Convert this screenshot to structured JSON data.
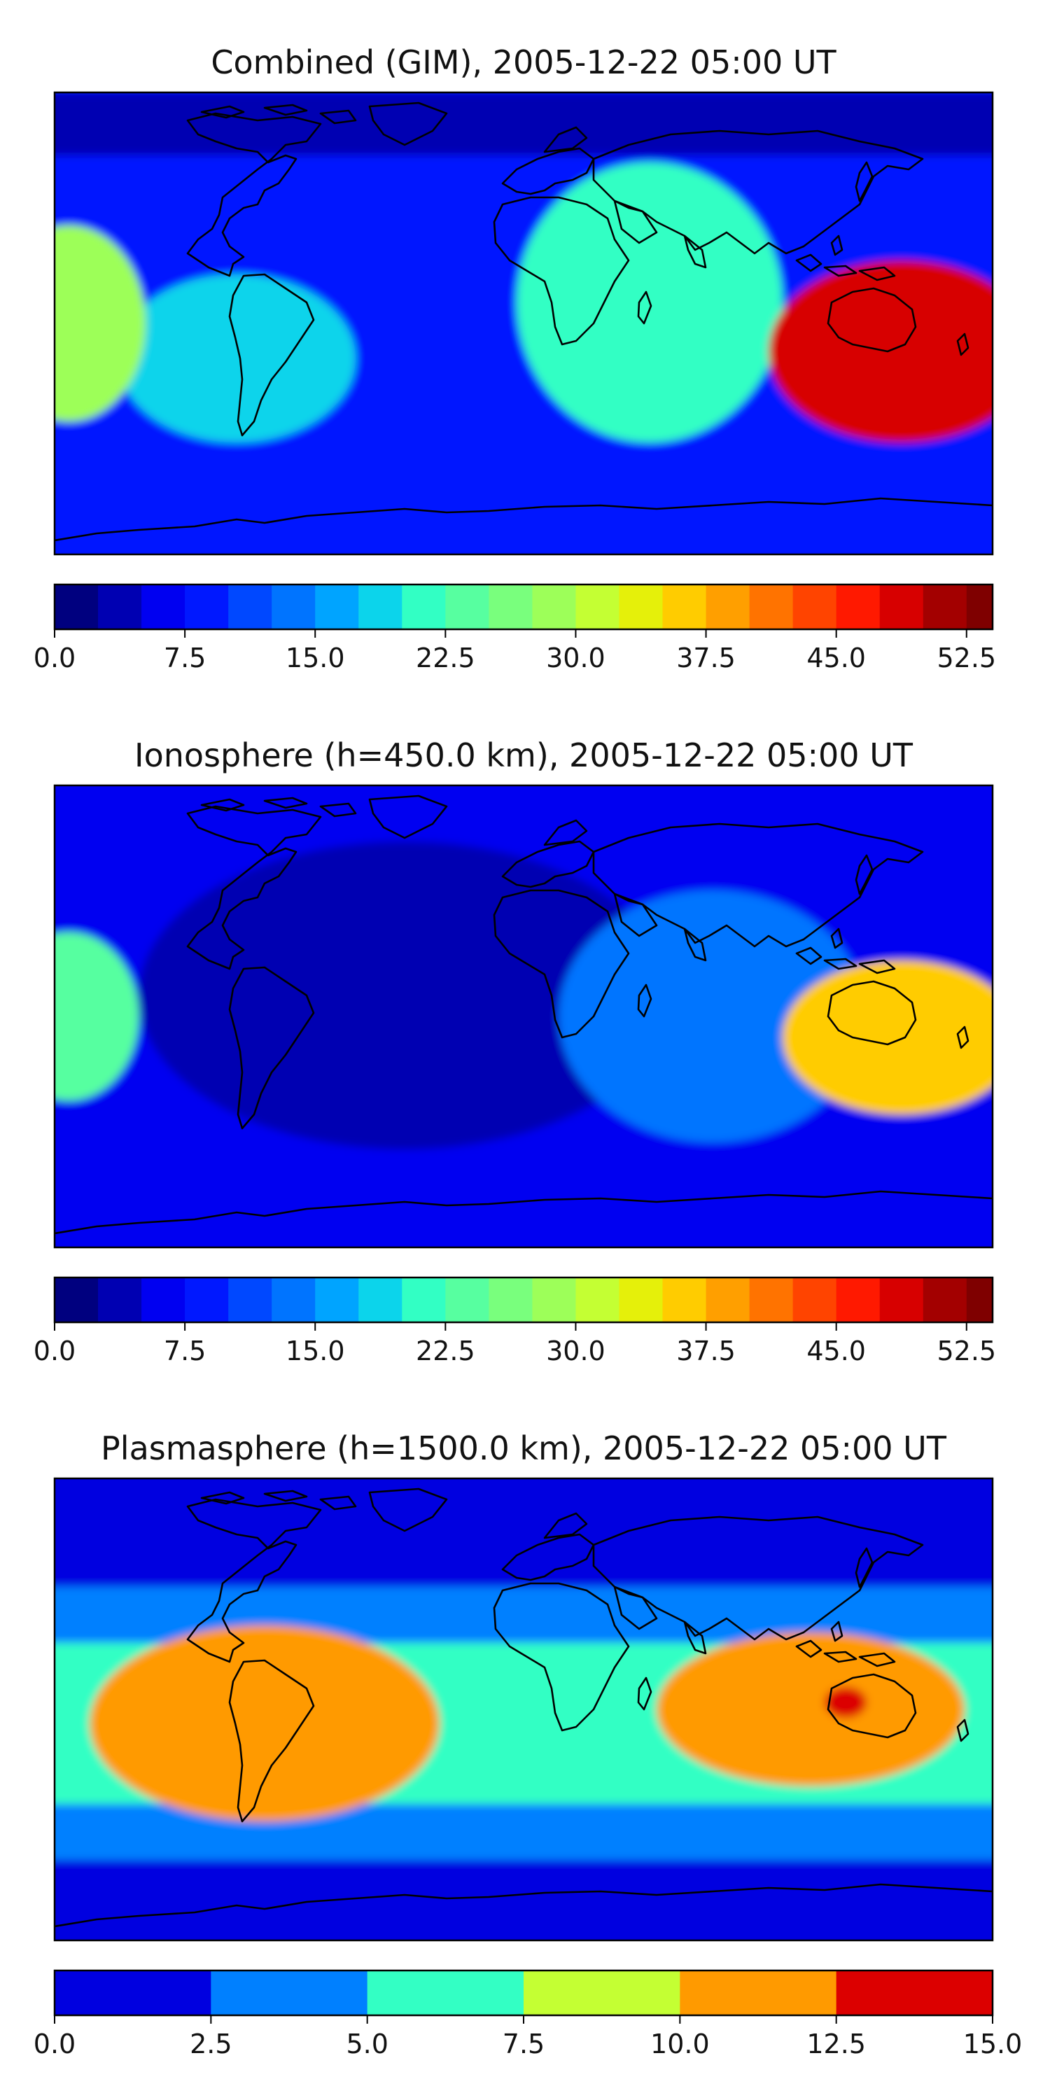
{
  "chart_data": [
    {
      "type": "heatmap",
      "title": "Combined (GIM), 2005-12-22 05:00 UT",
      "xlabel": "",
      "ylabel": "",
      "colorbar": {
        "min": 0.0,
        "max": 54.0,
        "step": 2.5,
        "ticks": [
          "0.0",
          "7.5",
          "15.0",
          "22.5",
          "30.0",
          "37.5",
          "45.0",
          "52.5"
        ],
        "tick_values": [
          0.0,
          7.5,
          15.0,
          22.5,
          30.0,
          37.5,
          45.0,
          52.5
        ],
        "colors": [
          "#00007f",
          "#0000b2",
          "#0000f1",
          "#0018ff",
          "#0048ff",
          "#0074ff",
          "#00a4ff",
          "#0cd4eb",
          "#32ffc4",
          "#57ffa0",
          "#79ff7d",
          "#9dff59",
          "#c4ff33",
          "#e5f00a",
          "#ffcc00",
          "#ff9f00",
          "#ff7300",
          "#ff4400",
          "#ff1900",
          "#d70000",
          "#a30000",
          "#7f0000"
        ]
      },
      "features": [
        {
          "name": "background",
          "value": 8
        },
        {
          "name": "northern polar band",
          "value": 4
        },
        {
          "name": "southeast Asia / maritime continent maximum",
          "value": 48
        },
        {
          "name": "central Pacific secondary crest",
          "value": 28
        },
        {
          "name": "South America / southern Atlantic band",
          "value": 18
        },
        {
          "name": "Africa / Indian Ocean band",
          "value": 20
        }
      ]
    },
    {
      "type": "heatmap",
      "title": "Ionosphere  (h=450.0 km), 2005-12-22 05:00 UT",
      "xlabel": "",
      "ylabel": "",
      "colorbar": {
        "min": 0.0,
        "max": 54.0,
        "step": 2.5,
        "ticks": [
          "0.0",
          "7.5",
          "15.0",
          "22.5",
          "30.0",
          "37.5",
          "45.0",
          "52.5"
        ],
        "tick_values": [
          0.0,
          7.5,
          15.0,
          22.5,
          30.0,
          37.5,
          45.0,
          52.5
        ],
        "colors": [
          "#00007f",
          "#0000b2",
          "#0000f1",
          "#0018ff",
          "#0048ff",
          "#0074ff",
          "#00a4ff",
          "#0cd4eb",
          "#32ffc4",
          "#57ffa0",
          "#79ff7d",
          "#9dff59",
          "#c4ff33",
          "#e5f00a",
          "#ffcc00",
          "#ff9f00",
          "#ff7300",
          "#ff4400",
          "#ff1900",
          "#d70000",
          "#a30000",
          "#7f0000"
        ]
      },
      "features": [
        {
          "name": "background",
          "value": 5
        },
        {
          "name": "Americas / Atlantic minimum",
          "value": 3
        },
        {
          "name": "southeast Asia / maritime continent maximum",
          "value": 37
        },
        {
          "name": "central Pacific secondary crest",
          "value": 24
        },
        {
          "name": "Indian Ocean band",
          "value": 14
        }
      ]
    },
    {
      "type": "heatmap",
      "title": "Plasmasphere (h=1500.0 km), 2005-12-22 05:00 UT",
      "xlabel": "",
      "ylabel": "",
      "colorbar": {
        "min": 0.0,
        "max": 15.0,
        "step": 2.5,
        "ticks": [
          "0.0",
          "2.5",
          "5.0",
          "7.5",
          "10.0",
          "12.5",
          "15.0"
        ],
        "tick_values": [
          0.0,
          2.5,
          5.0,
          7.5,
          10.0,
          12.5,
          15.0
        ],
        "colors": [
          "#0000e0",
          "#0080ff",
          "#33ffc4",
          "#c4ff33",
          "#ff9a00",
          "#dc0000"
        ]
      },
      "features": [
        {
          "name": "polar caps",
          "value": 1.5
        },
        {
          "name": "mid-latitude bands",
          "value": 4
        },
        {
          "name": "equatorial band",
          "value": 6
        },
        {
          "name": "eastern Pacific maximum",
          "value": 11
        },
        {
          "name": "southeast Asia maximum",
          "value": 12
        },
        {
          "name": "southeast Asia core",
          "value": 13
        }
      ]
    }
  ]
}
